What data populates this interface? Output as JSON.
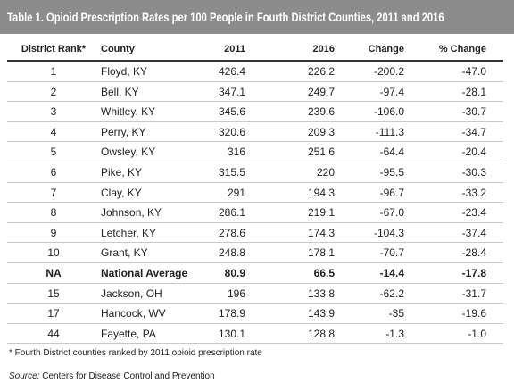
{
  "title": "Table 1. Opioid Prescription Rates per 100 People in Fourth District Counties, 2011 and 2016",
  "table": {
    "header": [
      "District Rank*",
      "County",
      "2011",
      "2016",
      "Change",
      "% Change"
    ],
    "rows": [
      [
        "1",
        "Floyd, KY",
        "426.4",
        "226.2",
        "-200.2",
        "-47.0"
      ],
      [
        "2",
        "Bell, KY",
        "347.1",
        "249.7",
        "-97.4",
        "-28.1"
      ],
      [
        "3",
        "Whitley, KY",
        "345.6",
        "239.6",
        "-106.0",
        "-30.7"
      ],
      [
        "4",
        "Perry, KY",
        "320.6",
        "209.3",
        "-111.3",
        "-34.7"
      ],
      [
        "5",
        "Owsley, KY",
        "316",
        "251.6",
        "-64.4",
        "-20.4"
      ],
      [
        "6",
        "Pike, KY",
        "315.5",
        "220",
        "-95.5",
        "-30.3"
      ],
      [
        "7",
        "Clay, KY",
        "291",
        "194.3",
        "-96.7",
        "-33.2"
      ],
      [
        "8",
        "Johnson, KY",
        "286.1",
        "219.1",
        "-67.0",
        "-23.4"
      ],
      [
        "9",
        "Letcher, KY",
        "278.6",
        "174.3",
        "-104.3",
        "-37.4"
      ],
      [
        "10",
        "Grant, KY",
        "248.8",
        "178.1",
        "-70.7",
        "-28.4"
      ],
      [
        "NA",
        "National Average",
        "80.9",
        "66.5",
        "-14.4",
        "-17.8"
      ],
      [
        "15",
        "Jackson, OH",
        "196",
        "133.8",
        "-62.2",
        "-31.7"
      ],
      [
        "17",
        "Hancock, WV",
        "178.9",
        "143.9",
        "-35",
        "-19.6"
      ],
      [
        "44",
        "Fayette, PA",
        "130.1",
        "128.8",
        "-1.3",
        "-1.0"
      ]
    ],
    "bold_row": 10
  },
  "footnote": "* Fourth District counties ranked by 2011 opioid prescription rate",
  "source": {
    "label": "Source:",
    "text": "Centers for Disease Control and Prevention"
  }
}
